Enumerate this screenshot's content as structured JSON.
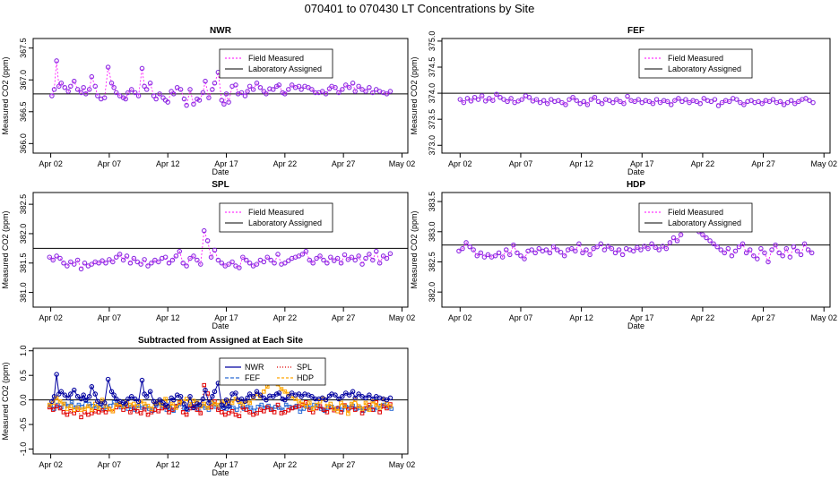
{
  "figure_title": "070401  to  070430 LT Concentrations by Site",
  "chart_data": [
    {
      "type": "scatter",
      "title": "NWR",
      "xlabel": "Date",
      "ylabel": "Measured CO2 (ppm)",
      "x_ticks": [
        "Apr 02",
        "Apr 07",
        "Apr 12",
        "Apr 17",
        "Apr 22",
        "Apr 27",
        "May 02"
      ],
      "y_ticks": [
        "366.0",
        "366.5",
        "367.0",
        "367.5"
      ],
      "ylim": [
        365.85,
        367.65
      ],
      "assigned_value": 366.78,
      "legend": [
        "Field Measured",
        "Laboratory Assigned"
      ],
      "series": [
        {
          "name": "Field Measured",
          "x_days": [
            1.1,
            1.3,
            1.5,
            1.7,
            1.9,
            2.2,
            2.5,
            2.7,
            3.0,
            3.3,
            3.6,
            3.8,
            4.0,
            4.3,
            4.5,
            4.8,
            5.0,
            5.3,
            5.6,
            5.9,
            6.2,
            6.4,
            6.6,
            6.9,
            7.2,
            7.4,
            7.6,
            7.9,
            8.2,
            8.5,
            8.8,
            9.0,
            9.2,
            9.5,
            9.8,
            10.0,
            10.3,
            10.6,
            10.8,
            11.0,
            11.3,
            11.5,
            11.8,
            12.1,
            12.4,
            12.6,
            12.9,
            13.2,
            13.5,
            13.7,
            14.0,
            14.2,
            14.5,
            14.8,
            15.0,
            15.3,
            15.6,
            15.8,
            16.0,
            16.2,
            16.5,
            16.8,
            17.0,
            17.3,
            17.6,
            17.8,
            18.0,
            18.3,
            18.6,
            18.9,
            19.2,
            19.4,
            19.7,
            20.0,
            20.3,
            20.5,
            20.8,
            21.0,
            21.3,
            21.6,
            21.9,
            22.2,
            22.4,
            22.7,
            23.0,
            23.3,
            23.6,
            23.9,
            24.2,
            24.5,
            24.8,
            25.0,
            25.3,
            25.6,
            25.9,
            26.2,
            26.5,
            26.8,
            27.0,
            27.3,
            27.6,
            27.9,
            28.2,
            28.5,
            28.8,
            29.1,
            29.4,
            29.7,
            30.0
          ],
          "y": [
            366.75,
            366.85,
            367.3,
            366.9,
            366.95,
            366.88,
            366.82,
            366.9,
            366.98,
            366.85,
            366.8,
            366.88,
            366.78,
            366.85,
            367.05,
            366.9,
            366.75,
            366.7,
            366.72,
            367.2,
            366.95,
            366.88,
            366.8,
            366.75,
            366.72,
            366.7,
            366.8,
            366.85,
            366.8,
            366.75,
            367.18,
            366.9,
            366.85,
            366.95,
            366.75,
            366.7,
            366.78,
            366.72,
            366.68,
            366.65,
            366.82,
            366.78,
            366.88,
            366.85,
            366.7,
            366.6,
            366.85,
            366.62,
            366.7,
            366.68,
            366.8,
            366.98,
            366.72,
            366.85,
            366.95,
            367.12,
            366.68,
            366.62,
            366.78,
            366.65,
            366.9,
            366.92,
            366.78,
            366.8,
            366.75,
            366.82,
            366.9,
            366.85,
            366.95,
            366.88,
            366.82,
            366.78,
            366.86,
            366.85,
            366.9,
            366.92,
            366.8,
            366.78,
            366.85,
            366.92,
            366.88,
            366.9,
            366.85,
            366.9,
            366.88,
            366.85,
            366.8,
            366.8,
            366.82,
            366.78,
            366.86,
            366.9,
            366.88,
            366.8,
            366.85,
            366.92,
            366.88,
            366.95,
            366.82,
            366.9,
            366.85,
            366.82,
            366.88,
            366.8,
            366.85,
            366.82,
            366.8,
            366.78,
            366.82
          ]
        }
      ]
    },
    {
      "type": "scatter",
      "title": "FEF",
      "xlabel": "Date",
      "ylabel": "Measured CO2 (ppm)",
      "x_ticks": [
        "Apr 02",
        "Apr 07",
        "Apr 12",
        "Apr 17",
        "Apr 22",
        "Apr 27",
        "May 02"
      ],
      "y_ticks": [
        "373.0",
        "373.5",
        "374.0",
        "374.5",
        "375.0"
      ],
      "ylim": [
        372.85,
        375.05
      ],
      "assigned_value": 374.0,
      "legend": [
        "Field Measured",
        "Laboratory Assigned"
      ],
      "series": [
        {
          "name": "Field Measured",
          "x_days": [
            1.0,
            1.3,
            1.6,
            1.9,
            2.2,
            2.5,
            2.8,
            3.1,
            3.4,
            3.7,
            4.0,
            4.3,
            4.6,
            4.9,
            5.2,
            5.5,
            5.8,
            6.1,
            6.4,
            6.7,
            7.0,
            7.3,
            7.6,
            7.9,
            8.2,
            8.5,
            8.8,
            9.1,
            9.4,
            9.7,
            10.0,
            10.3,
            10.6,
            10.9,
            11.2,
            11.5,
            11.8,
            12.1,
            12.4,
            12.7,
            13.0,
            13.3,
            13.6,
            13.9,
            14.2,
            14.5,
            14.8,
            15.1,
            15.4,
            15.7,
            16.0,
            16.3,
            16.6,
            16.9,
            17.2,
            17.5,
            17.8,
            18.1,
            18.4,
            18.7,
            19.0,
            19.3,
            19.6,
            19.9,
            20.2,
            20.5,
            20.8,
            21.1,
            21.4,
            21.7,
            22.0,
            22.3,
            22.6,
            22.9,
            23.2,
            23.5,
            23.8,
            24.1,
            24.4,
            24.7,
            25.0,
            25.3,
            25.6,
            25.9,
            26.2,
            26.5,
            26.8,
            27.1,
            27.4,
            27.7,
            28.0,
            28.3,
            28.6,
            28.9,
            29.2,
            29.5,
            29.8,
            30.1
          ],
          "y": [
            373.88,
            373.82,
            373.9,
            373.85,
            373.92,
            373.88,
            373.95,
            373.85,
            373.9,
            373.86,
            373.98,
            373.92,
            373.88,
            373.84,
            373.9,
            373.82,
            373.85,
            373.88,
            373.95,
            373.92,
            373.85,
            373.88,
            373.82,
            373.86,
            373.8,
            373.88,
            373.84,
            373.86,
            373.82,
            373.78,
            373.88,
            373.92,
            373.86,
            373.8,
            373.84,
            373.78,
            373.88,
            373.92,
            373.84,
            373.8,
            373.88,
            373.86,
            373.82,
            373.88,
            373.84,
            373.8,
            373.94,
            373.86,
            373.84,
            373.88,
            373.82,
            373.86,
            373.84,
            373.8,
            373.88,
            373.82,
            373.86,
            373.84,
            373.78,
            373.86,
            373.9,
            373.84,
            373.88,
            373.82,
            373.86,
            373.84,
            373.8,
            373.9,
            373.86,
            373.84,
            373.88,
            373.76,
            373.82,
            373.86,
            373.84,
            373.9,
            373.88,
            373.82,
            373.78,
            373.84,
            373.86,
            373.82,
            373.84,
            373.8,
            373.86,
            373.84,
            373.88,
            373.82,
            373.84,
            373.78,
            373.82,
            373.86,
            373.8,
            373.84,
            373.88,
            373.9,
            373.86,
            373.82
          ]
        }
      ]
    },
    {
      "type": "scatter",
      "title": "SPL",
      "xlabel": "Date",
      "ylabel": "Measured CO2 (ppm)",
      "x_ticks": [
        "Apr 02",
        "Apr 07",
        "Apr 12",
        "Apr 17",
        "Apr 22",
        "Apr 27",
        "May 02"
      ],
      "y_ticks": [
        "381.0",
        "381.5",
        "382.0",
        "382.5"
      ],
      "ylim": [
        380.75,
        382.7
      ],
      "assigned_value": 381.75,
      "legend": [
        "Field Measured",
        "Laboratory Assigned"
      ],
      "series": [
        {
          "name": "Field Measured",
          "x_days": [
            0.9,
            1.2,
            1.5,
            1.8,
            2.1,
            2.4,
            2.7,
            3.0,
            3.3,
            3.6,
            3.9,
            4.2,
            4.5,
            4.8,
            5.1,
            5.4,
            5.7,
            6.0,
            6.3,
            6.6,
            6.9,
            7.2,
            7.5,
            7.8,
            8.1,
            8.4,
            8.7,
            9.0,
            9.3,
            9.6,
            9.9,
            10.2,
            10.5,
            10.8,
            11.1,
            11.4,
            11.7,
            12.0,
            12.3,
            12.6,
            12.9,
            13.2,
            13.5,
            13.8,
            14.1,
            14.4,
            14.7,
            15.0,
            15.3,
            15.6,
            15.9,
            16.2,
            16.5,
            16.8,
            17.1,
            17.4,
            17.7,
            18.0,
            18.3,
            18.6,
            18.9,
            19.2,
            19.5,
            19.8,
            20.1,
            20.4,
            20.7,
            21.0,
            21.3,
            21.6,
            21.9,
            22.2,
            22.5,
            22.8,
            23.1,
            23.4,
            23.7,
            24.0,
            24.3,
            24.6,
            24.9,
            25.2,
            25.5,
            25.8,
            26.1,
            26.4,
            26.7,
            27.0,
            27.3,
            27.6,
            27.9,
            28.2,
            28.5,
            28.8,
            29.1,
            29.4,
            29.7,
            30.0
          ],
          "y": [
            381.6,
            381.55,
            381.62,
            381.58,
            381.5,
            381.45,
            381.52,
            381.48,
            381.55,
            381.4,
            381.5,
            381.45,
            381.48,
            381.52,
            381.5,
            381.54,
            381.5,
            381.56,
            381.52,
            381.6,
            381.65,
            381.55,
            381.62,
            381.5,
            381.58,
            381.52,
            381.48,
            381.56,
            381.45,
            381.5,
            381.55,
            381.52,
            381.58,
            381.6,
            381.5,
            381.55,
            381.62,
            381.7,
            381.5,
            381.45,
            381.58,
            381.62,
            381.55,
            381.48,
            382.05,
            381.88,
            381.6,
            381.72,
            381.55,
            381.5,
            381.45,
            381.48,
            381.52,
            381.45,
            381.42,
            381.6,
            381.55,
            381.5,
            381.45,
            381.48,
            381.55,
            381.52,
            381.6,
            381.55,
            381.5,
            381.65,
            381.48,
            381.5,
            381.54,
            381.58,
            381.6,
            381.62,
            381.65,
            381.7,
            381.55,
            381.5,
            381.58,
            381.62,
            381.55,
            381.5,
            381.6,
            381.54,
            381.58,
            381.5,
            381.64,
            381.56,
            381.6,
            381.55,
            381.62,
            381.48,
            381.58,
            381.65,
            381.55,
            381.7,
            381.5,
            381.62,
            381.58,
            381.66
          ]
        }
      ]
    },
    {
      "type": "scatter",
      "title": "HDP",
      "xlabel": "Date",
      "ylabel": "Measured CO2 (ppm)",
      "x_ticks": [
        "Apr 02",
        "Apr 07",
        "Apr 12",
        "Apr 17",
        "Apr 22",
        "Apr 27",
        "May 02"
      ],
      "y_ticks": [
        "382.0",
        "382.5",
        "383.0",
        "383.5"
      ],
      "ylim": [
        381.75,
        383.65
      ],
      "assigned_value": 382.78,
      "legend": [
        "Field Measured",
        "Laboratory Assigned"
      ],
      "series": [
        {
          "name": "Field Measured",
          "x_days": [
            0.9,
            1.2,
            1.5,
            1.8,
            2.1,
            2.4,
            2.7,
            3.0,
            3.3,
            3.6,
            3.9,
            4.2,
            4.5,
            4.8,
            5.1,
            5.4,
            5.7,
            6.0,
            6.3,
            6.6,
            6.9,
            7.2,
            7.5,
            7.8,
            8.1,
            8.4,
            8.7,
            9.0,
            9.3,
            9.6,
            9.9,
            10.2,
            10.5,
            10.8,
            11.1,
            11.4,
            11.7,
            12.0,
            12.3,
            12.6,
            12.9,
            13.2,
            13.5,
            13.8,
            14.1,
            14.4,
            14.7,
            15.0,
            15.3,
            15.6,
            15.9,
            16.2,
            16.5,
            16.8,
            17.1,
            17.4,
            17.7,
            18.0,
            18.3,
            18.6,
            18.9,
            19.2,
            19.5,
            19.8,
            20.1,
            20.4,
            20.7,
            21.0,
            21.3,
            21.6,
            21.9,
            22.2,
            22.5,
            22.8,
            23.1,
            23.4,
            23.7,
            24.0,
            24.3,
            24.6,
            24.9,
            25.2,
            25.5,
            25.8,
            26.1,
            26.4,
            26.7,
            27.0,
            27.3,
            27.6,
            27.9,
            28.2,
            28.5,
            28.8,
            29.1,
            29.4,
            29.7,
            30.0
          ],
          "y": [
            382.68,
            382.72,
            382.82,
            382.75,
            382.7,
            382.6,
            382.65,
            382.58,
            382.62,
            382.58,
            382.6,
            382.65,
            382.58,
            382.7,
            382.62,
            382.78,
            382.65,
            382.6,
            382.55,
            382.68,
            382.7,
            382.65,
            382.72,
            382.68,
            382.7,
            382.65,
            382.75,
            382.7,
            382.66,
            382.6,
            382.7,
            382.72,
            382.68,
            382.8,
            382.65,
            382.7,
            382.62,
            382.72,
            382.75,
            382.8,
            382.7,
            382.76,
            382.72,
            382.65,
            382.7,
            382.62,
            382.72,
            382.7,
            382.68,
            382.74,
            382.7,
            382.76,
            382.72,
            382.8,
            382.74,
            382.7,
            382.76,
            382.72,
            382.82,
            382.9,
            382.85,
            382.95,
            383.05,
            383.2,
            383.25,
            383.1,
            383.0,
            382.95,
            382.9,
            382.85,
            382.8,
            382.75,
            382.7,
            382.65,
            382.72,
            382.6,
            382.68,
            382.75,
            382.8,
            382.65,
            382.7,
            382.6,
            382.55,
            382.72,
            382.65,
            382.5,
            382.7,
            382.78,
            382.65,
            382.6,
            382.72,
            382.58,
            382.75,
            382.68,
            382.62,
            382.8,
            382.7,
            382.65
          ]
        }
      ]
    },
    {
      "type": "line",
      "title": "Subtracted from Assigned at Each Site",
      "xlabel": "Date",
      "ylabel": "Measured CO2 (ppm)",
      "x_ticks": [
        "Apr 02",
        "Apr 07",
        "Apr 12",
        "Apr 17",
        "Apr 22",
        "Apr 27",
        "May 02"
      ],
      "y_ticks": [
        "-1.0",
        "-0.5",
        "0.0",
        "0.5",
        "1.0"
      ],
      "ylim": [
        -1.1,
        1.05
      ],
      "reference_value": 0.0,
      "legend": [
        "NWR",
        "SPL",
        "FEF",
        "HDP"
      ],
      "colors": {
        "NWR": "#0000a0",
        "FEF": "#2a6ad4",
        "SPL": "#e00000",
        "HDP": "#ffa500"
      }
    }
  ]
}
